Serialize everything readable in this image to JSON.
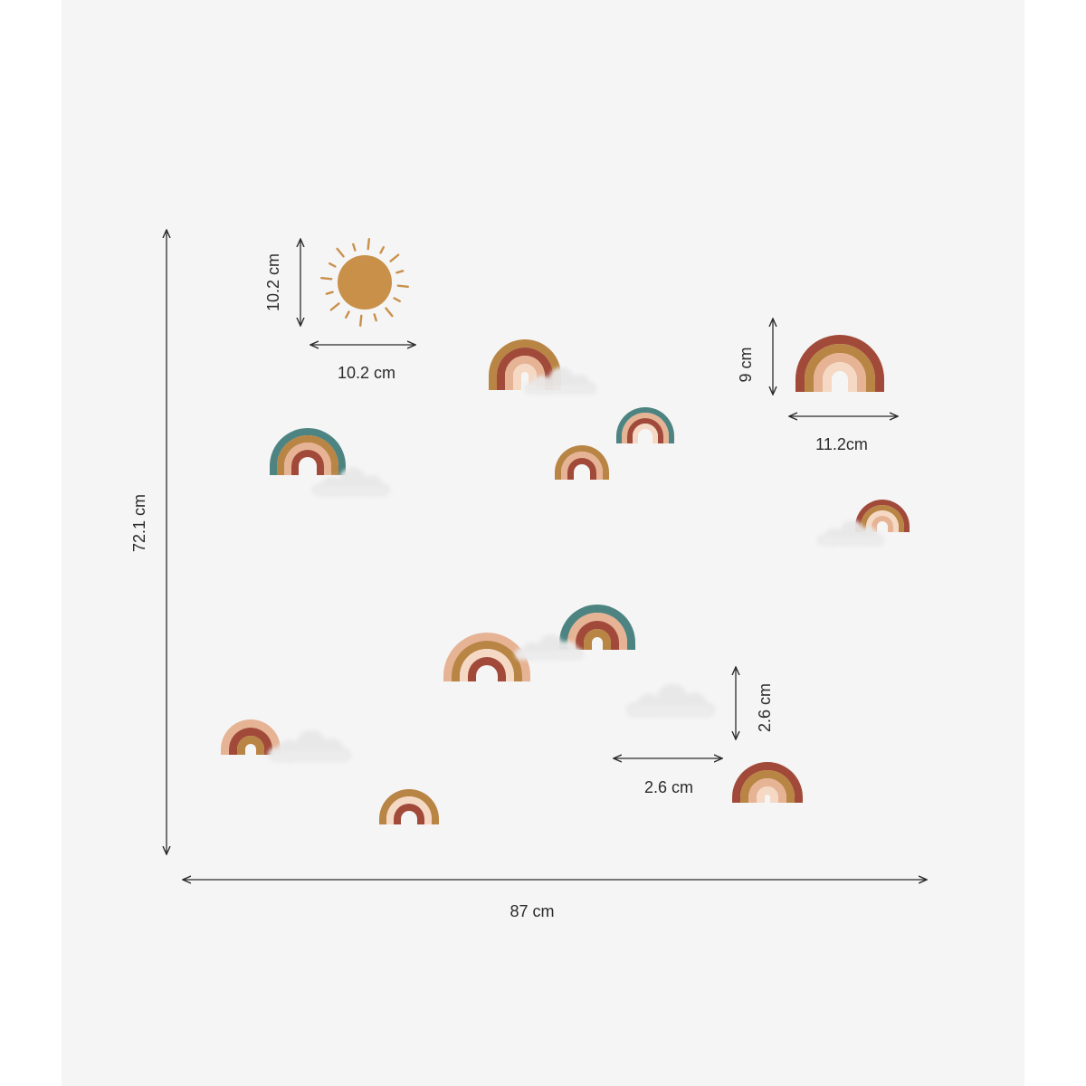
{
  "palette": {
    "background": "#f5f5f5",
    "page": "#ffffff",
    "line": "#2b2b2b",
    "sun": "#c9904a",
    "teal": "#4d8481",
    "rust": "#a24a3a",
    "ochre": "#b98545",
    "blush": "#e6b395",
    "cream": "#f5d9c4",
    "cloud": "#e8e8e8"
  },
  "dimensions": {
    "total_width": "87 cm",
    "total_height": "72.1 cm",
    "sun_height": "10.2 cm",
    "sun_width": "10.2 cm",
    "rainbow_height": "9 cm",
    "rainbow_width": "11.2cm",
    "small_height": "2.6 cm",
    "small_width": "2.6 cm"
  },
  "elements": {
    "sun": {
      "icon": "sun-icon"
    },
    "rainbows": [
      {
        "name": "rainbow-top-center",
        "bands": [
          "ochre",
          "rust",
          "blush",
          "cream"
        ]
      },
      {
        "name": "rainbow-large-right",
        "bands": [
          "rust",
          "ochre",
          "blush",
          "cream"
        ]
      },
      {
        "name": "rainbow-teal-small",
        "bands": [
          "teal",
          "blush",
          "rust",
          "cream"
        ]
      },
      {
        "name": "rainbow-ochre-small",
        "bands": [
          "ochre",
          "blush",
          "rust",
          "cream"
        ]
      },
      {
        "name": "rainbow-teal-left",
        "bands": [
          "teal",
          "ochre",
          "blush",
          "rust"
        ]
      },
      {
        "name": "rainbow-right-small",
        "bands": [
          "rust",
          "ochre",
          "cream",
          "blush"
        ]
      },
      {
        "name": "rainbow-teal-center",
        "bands": [
          "teal",
          "blush",
          "rust",
          "ochre"
        ]
      },
      {
        "name": "rainbow-wide-center",
        "bands": [
          "blush",
          "ochre",
          "cream",
          "rust"
        ]
      },
      {
        "name": "rainbow-left-bottom",
        "bands": [
          "blush",
          "rust",
          "ochre"
        ]
      },
      {
        "name": "rainbow-bottom-center",
        "bands": [
          "ochre",
          "cream",
          "rust"
        ]
      },
      {
        "name": "rainbow-bottom-right",
        "bands": [
          "rust",
          "ochre",
          "blush",
          "cream"
        ]
      }
    ],
    "clouds": 7
  }
}
